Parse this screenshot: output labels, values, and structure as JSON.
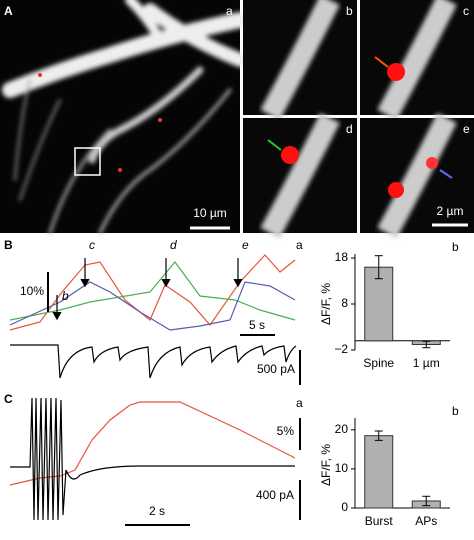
{
  "panel_labels": [
    "A",
    "B",
    "C"
  ],
  "image_labels": [
    "a",
    "b",
    "c",
    "d",
    "e"
  ],
  "image_scale_bars": [
    "10 µm",
    "2 µm"
  ],
  "panel_b_traces": {
    "label": "a",
    "event_labels": [
      "c",
      "d",
      "e",
      "b"
    ],
    "scale_bars": [
      "10%",
      "5 s",
      "500 pA"
    ]
  },
  "panel_c_traces": {
    "label": "a",
    "scale_bars": [
      "5%",
      "400 pA",
      "2 s"
    ]
  },
  "chart_data": [
    {
      "type": "bar",
      "label": "b",
      "ylabel": "ΔF/F, %",
      "categories": [
        "Spine",
        "1 µm"
      ],
      "values": [
        16,
        -0.8
      ],
      "errors": [
        2.5,
        0.7
      ],
      "color": "#b0b0b0",
      "ylim": [
        -2,
        18
      ],
      "yticks": [
        {
          "value": -2,
          "label": "−2"
        },
        8,
        18
      ]
    },
    {
      "type": "bar",
      "label": "b",
      "ylabel": "ΔF/F, %",
      "categories": [
        "Burst",
        "APs"
      ],
      "values": [
        18.5,
        1.8
      ],
      "errors": [
        1.2,
        1.2
      ],
      "color": "#b0b0b0",
      "ylim": [
        0,
        22
      ],
      "yticks": [
        0,
        10,
        20
      ]
    }
  ]
}
